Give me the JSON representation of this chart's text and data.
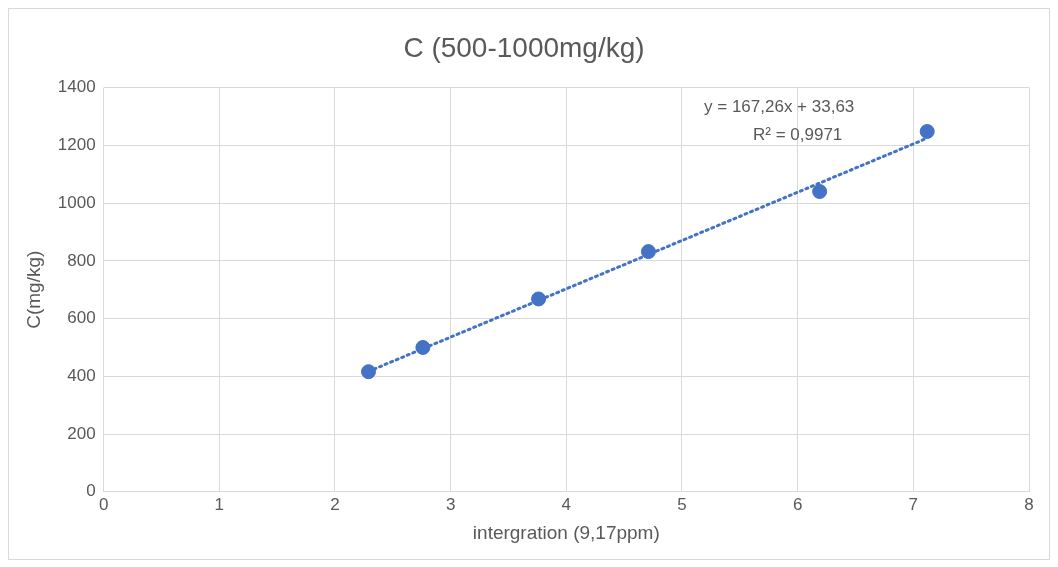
{
  "chart_data": {
    "type": "scatter",
    "title": "C (500-1000mg/kg)",
    "xlabel": "intergration (9,17ppm)",
    "ylabel": "C(mg/kg)",
    "x": [
      2.29,
      2.76,
      3.76,
      4.71,
      6.19,
      7.12
    ],
    "series": [
      {
        "type": "scatter",
        "color": "#4472c4",
        "values": [
          416,
          500,
          668,
          832,
          1040,
          1248
        ],
        "marker": "circle"
      },
      {
        "type": "line",
        "color": "#4472c4",
        "x": [
          2.29,
          7.12
        ],
        "values": [
          417,
          1225
        ],
        "line_style": "dotted",
        "marker": "none"
      }
    ],
    "annotations": [
      "y = 167,26x + 33,63",
      "R² = 0,9971"
    ],
    "xlim": [
      0,
      8
    ],
    "xticks": [
      0,
      1,
      2,
      3,
      4,
      5,
      6,
      7,
      8
    ],
    "ylim": [
      0,
      1400
    ],
    "yticks": [
      0,
      200,
      400,
      600,
      800,
      1000,
      1200,
      1400
    ],
    "grid": true,
    "legend": false
  }
}
